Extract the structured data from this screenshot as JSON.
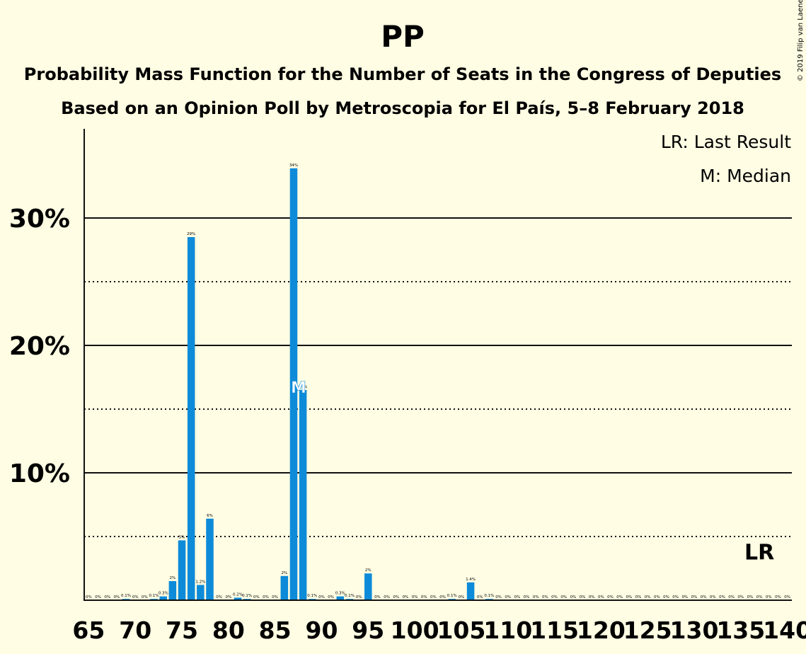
{
  "chart_data": {
    "type": "bar",
    "title": "PP",
    "subtitle1": "Probability Mass Function for the Number of Seats in the Congress of Deputies",
    "subtitle2": "Based on an Opinion Poll by Metroscopia for El País, 5–8 February 2018",
    "copyright": "© 2019 Filip van Laenen",
    "legend": {
      "lr": "LR: Last Result",
      "m": "M: Median",
      "placement": "top-right"
    },
    "lr_marker": {
      "text": "LR",
      "seat": 137
    },
    "median_marker": {
      "text": "M",
      "seat": 87
    },
    "bar_color": "#0D8BD9",
    "x_range": [
      65,
      140
    ],
    "x_ticks": [
      65,
      70,
      75,
      80,
      85,
      90,
      95,
      100,
      105,
      110,
      115,
      120,
      125,
      130,
      135,
      140
    ],
    "y_range": [
      0,
      37
    ],
    "y_ticks_solid": [
      10,
      20,
      30
    ],
    "y_tick_labels": [
      "10%",
      "20%",
      "30%"
    ],
    "y_ticks_dotted": [
      5,
      15,
      25
    ],
    "x": [
      65,
      66,
      67,
      68,
      69,
      70,
      71,
      72,
      73,
      74,
      75,
      76,
      77,
      78,
      79,
      80,
      81,
      82,
      83,
      84,
      85,
      86,
      87,
      88,
      89,
      90,
      91,
      92,
      93,
      94,
      95,
      96,
      97,
      98,
      99,
      100,
      101,
      102,
      103,
      104,
      105,
      106,
      107,
      108,
      109,
      110,
      111,
      112,
      113,
      114,
      115,
      116,
      117,
      118,
      119,
      120,
      121,
      122,
      123,
      124,
      125,
      126,
      127,
      128,
      129,
      130,
      131,
      132,
      133,
      134,
      135,
      136,
      137,
      138,
      139,
      140
    ],
    "values": [
      0,
      0,
      0,
      0,
      0.1,
      0,
      0,
      0.1,
      0.3,
      1.5,
      4.7,
      28.5,
      1.2,
      6.4,
      0,
      0,
      0.2,
      0.1,
      0,
      0,
      0,
      1.9,
      33.9,
      16.5,
      0.1,
      0,
      0,
      0.3,
      0.1,
      0,
      2.1,
      0,
      0,
      0,
      0,
      0,
      0,
      0,
      0,
      0.1,
      0,
      1.4,
      0,
      0.1,
      0,
      0,
      0,
      0,
      0,
      0,
      0,
      0,
      0,
      0,
      0,
      0,
      0,
      0,
      0,
      0,
      0,
      0,
      0,
      0,
      0,
      0,
      0,
      0,
      0,
      0,
      0,
      0,
      0,
      0,
      0,
      0
    ],
    "labels": [
      "0%",
      "0%",
      "0%",
      "0%",
      "0.1%",
      "0%",
      "0%",
      "0.1%",
      "0.3%",
      "2%",
      "5%",
      "29%",
      "1.2%",
      "6%",
      "0%",
      "0%",
      "0.2%",
      "0.1%",
      "0%",
      "0%",
      "0%",
      "2%",
      "34%",
      "17%",
      "0.1%",
      "0%",
      "0%",
      "0.3%",
      "0.1%",
      "0%",
      "2%",
      "0%",
      "0%",
      "0%",
      "0%",
      "0%",
      "0%",
      "0%",
      "0%",
      "0.1%",
      "0%",
      "1.4%",
      "0%",
      "0.1%",
      "0%",
      "0%",
      "0%",
      "0%",
      "0%",
      "0%",
      "0%",
      "0%",
      "0%",
      "0%",
      "0%",
      "0%",
      "0%",
      "0%",
      "0%",
      "0%",
      "0%",
      "0%",
      "0%",
      "0%",
      "0%",
      "0%",
      "0%",
      "0%",
      "0%",
      "0%",
      "0%",
      "0%",
      "0%",
      "0%",
      "0%",
      "0%"
    ]
  }
}
